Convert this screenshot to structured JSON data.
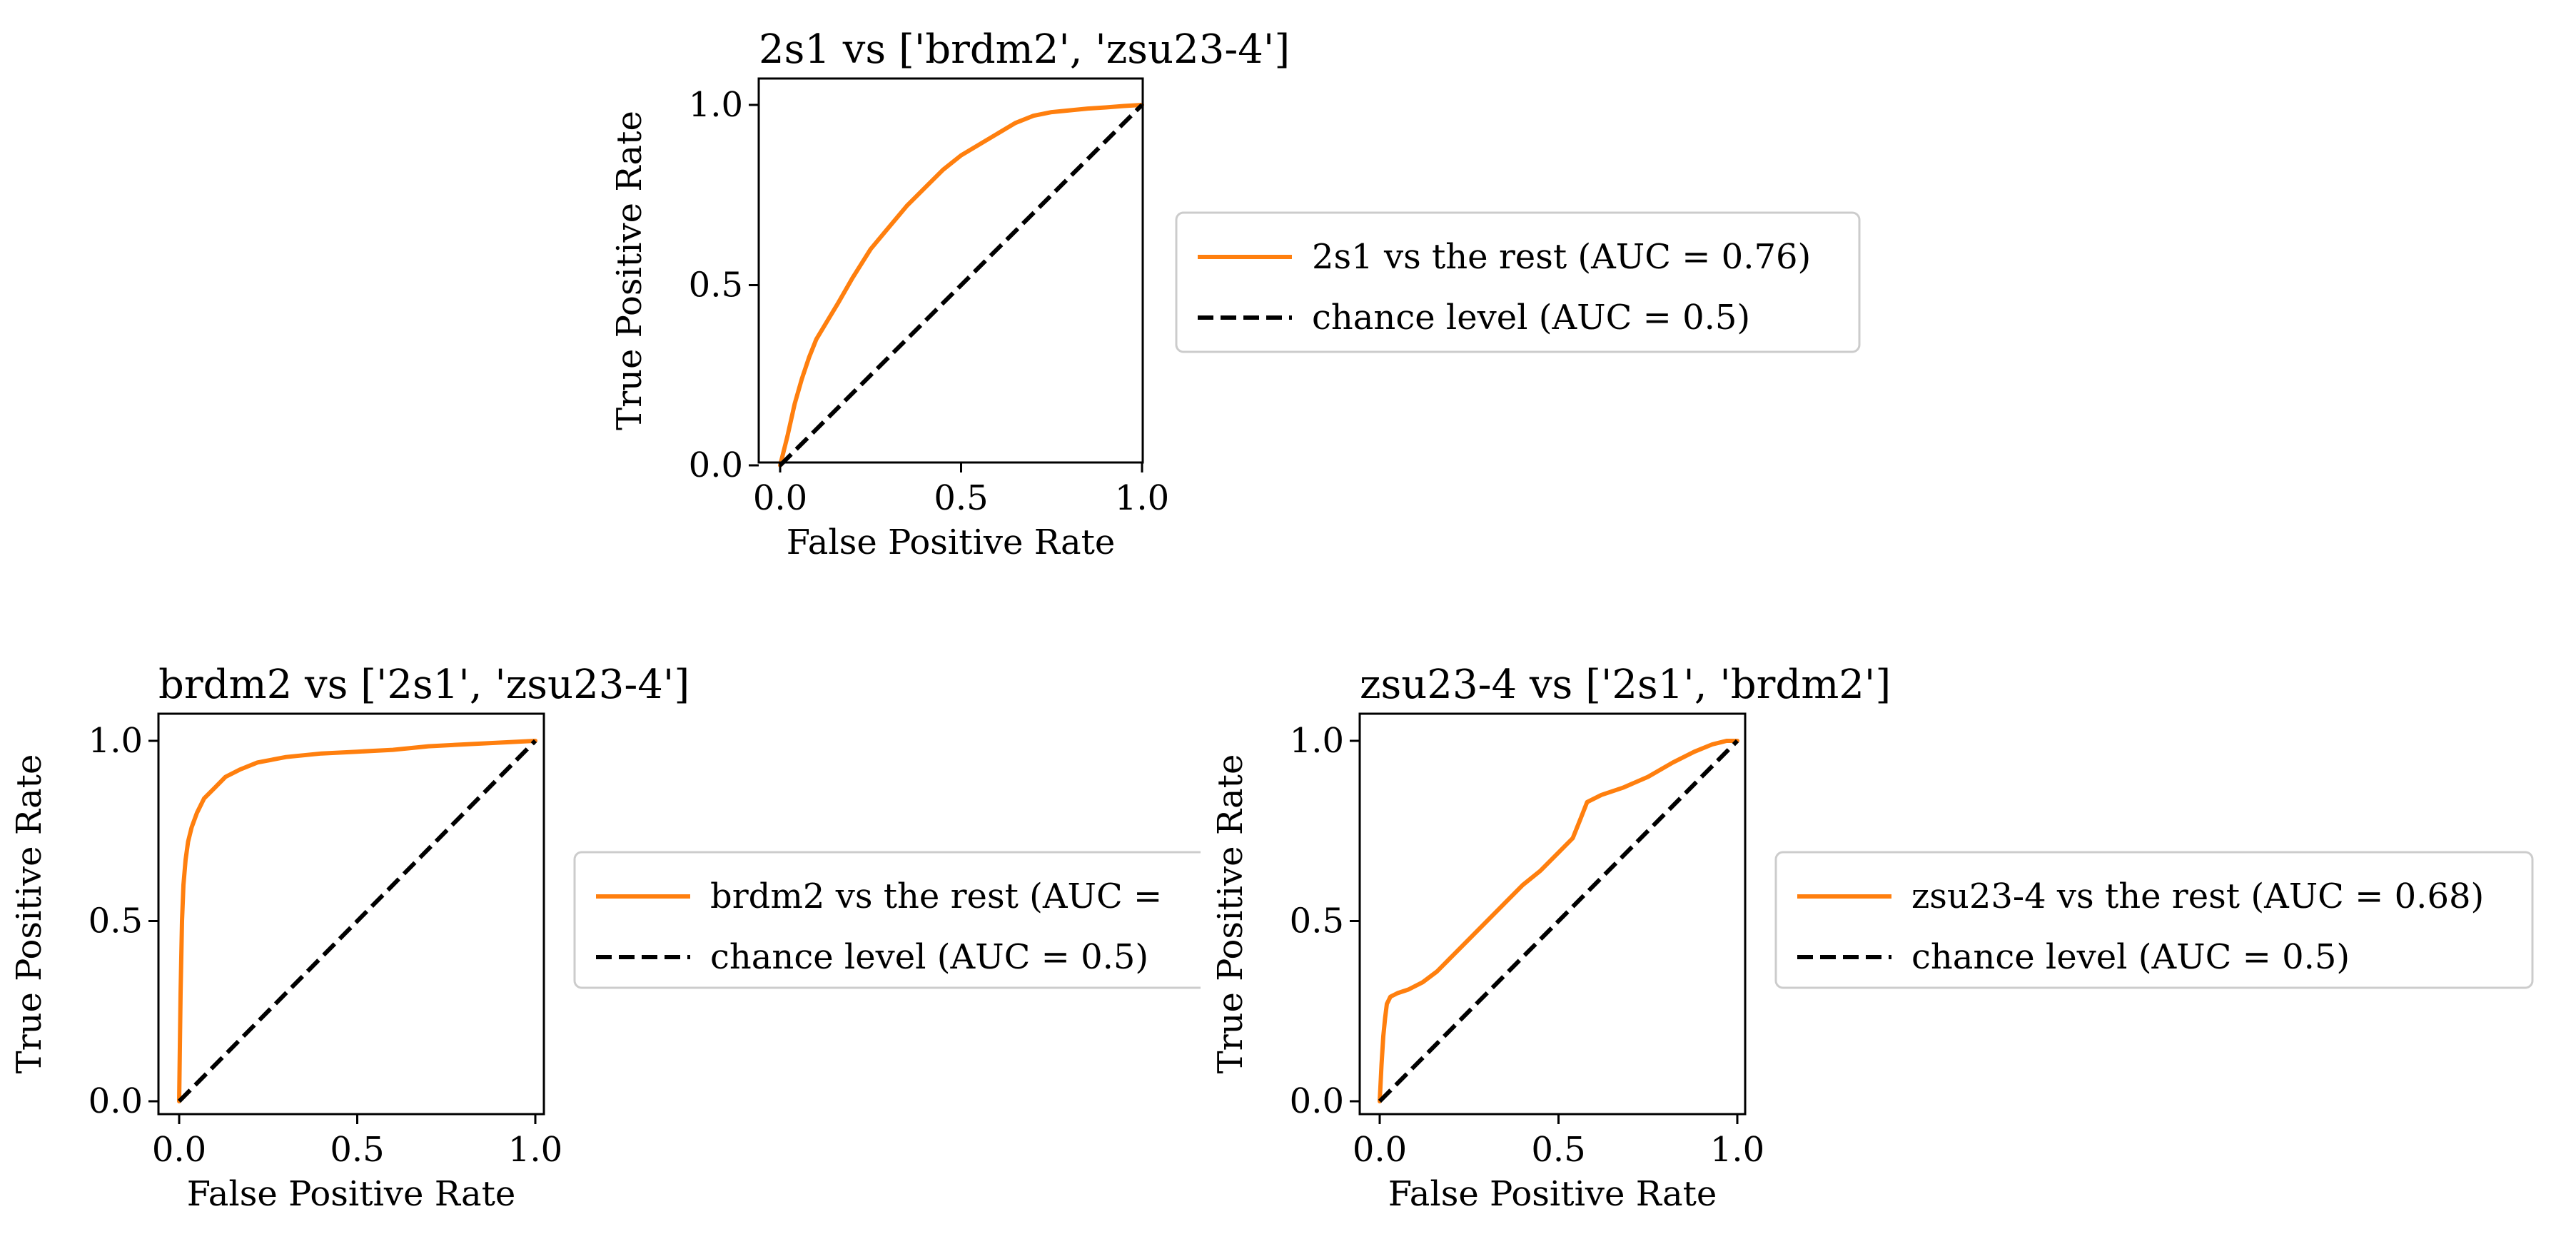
{
  "chart_data": [
    {
      "type": "line",
      "title": "2s1 vs ['brdm2', 'zsu23-4']",
      "xlabel": "False Positive Rate",
      "ylabel": "True Positive Rate",
      "xlim": [
        0,
        1
      ],
      "ylim": [
        0,
        1
      ],
      "xticks": [
        "0.0",
        "0.5",
        "1.0"
      ],
      "yticks": [
        "0.0",
        "0.5",
        "1.0"
      ],
      "grid": false,
      "legend_position": "outside-right",
      "series": [
        {
          "name": "2s1 vs the rest (AUC = 0.76)",
          "color": "#ff7f0e",
          "style": "solid",
          "x": [
            0.0,
            0.02,
            0.04,
            0.06,
            0.08,
            0.1,
            0.13,
            0.16,
            0.2,
            0.25,
            0.3,
            0.35,
            0.4,
            0.45,
            0.5,
            0.55,
            0.6,
            0.65,
            0.7,
            0.75,
            0.8,
            0.85,
            0.9,
            0.95,
            1.0
          ],
          "y": [
            0.0,
            0.08,
            0.17,
            0.24,
            0.3,
            0.35,
            0.4,
            0.45,
            0.52,
            0.6,
            0.66,
            0.72,
            0.77,
            0.82,
            0.86,
            0.89,
            0.92,
            0.95,
            0.97,
            0.98,
            0.985,
            0.99,
            0.993,
            0.997,
            1.0
          ]
        },
        {
          "name": "chance level (AUC = 0.5)",
          "color": "#000000",
          "style": "dashed",
          "x": [
            0,
            1
          ],
          "y": [
            0,
            1
          ]
        }
      ]
    },
    {
      "type": "line",
      "title": "brdm2 vs ['2s1', 'zsu23-4']",
      "xlabel": "False Positive Rate",
      "ylabel": "True Positive Rate",
      "xlim": [
        0,
        1
      ],
      "ylim": [
        0,
        1
      ],
      "xticks": [
        "0.0",
        "0.5",
        "1.0"
      ],
      "yticks": [
        "0.0",
        "0.5",
        "1.0"
      ],
      "grid": false,
      "legend_position": "outside-right",
      "series": [
        {
          "name": "brdm2 vs the rest (AUC =",
          "color": "#ff7f0e",
          "style": "solid",
          "x": [
            0.0,
            0.004,
            0.008,
            0.012,
            0.018,
            0.025,
            0.035,
            0.05,
            0.07,
            0.1,
            0.13,
            0.17,
            0.22,
            0.3,
            0.4,
            0.5,
            0.6,
            0.7,
            0.8,
            0.9,
            1.0
          ],
          "y": [
            0.0,
            0.3,
            0.5,
            0.6,
            0.67,
            0.72,
            0.76,
            0.8,
            0.84,
            0.87,
            0.9,
            0.92,
            0.94,
            0.955,
            0.965,
            0.97,
            0.975,
            0.985,
            0.99,
            0.995,
            1.0
          ]
        },
        {
          "name": "chance level (AUC = 0.5)",
          "color": "#000000",
          "style": "dashed",
          "x": [
            0,
            1
          ],
          "y": [
            0,
            1
          ]
        }
      ]
    },
    {
      "type": "line",
      "title": "zsu23-4 vs ['2s1', 'brdm2']",
      "xlabel": "False Positive Rate",
      "ylabel": "True Positive Rate",
      "xlim": [
        0,
        1
      ],
      "ylim": [
        0,
        1
      ],
      "xticks": [
        "0.0",
        "0.5",
        "1.0"
      ],
      "yticks": [
        "0.0",
        "0.5",
        "1.0"
      ],
      "grid": false,
      "legend_position": "outside-right",
      "series": [
        {
          "name": "zsu23-4 vs the rest (AUC = 0.68)",
          "color": "#ff7f0e",
          "style": "solid",
          "x": [
            0.0,
            0.005,
            0.01,
            0.015,
            0.02,
            0.03,
            0.05,
            0.08,
            0.12,
            0.16,
            0.2,
            0.25,
            0.3,
            0.35,
            0.4,
            0.45,
            0.5,
            0.54,
            0.56,
            0.58,
            0.62,
            0.68,
            0.75,
            0.82,
            0.88,
            0.93,
            0.97,
            1.0
          ],
          "y": [
            0.0,
            0.1,
            0.18,
            0.23,
            0.27,
            0.29,
            0.3,
            0.31,
            0.33,
            0.36,
            0.4,
            0.45,
            0.5,
            0.55,
            0.6,
            0.64,
            0.69,
            0.73,
            0.78,
            0.83,
            0.85,
            0.87,
            0.9,
            0.94,
            0.97,
            0.99,
            1.0,
            1.0
          ]
        },
        {
          "name": "chance level (AUC = 0.5)",
          "color": "#000000",
          "style": "dashed",
          "x": [
            0,
            1
          ],
          "y": [
            0,
            1
          ]
        }
      ]
    }
  ]
}
